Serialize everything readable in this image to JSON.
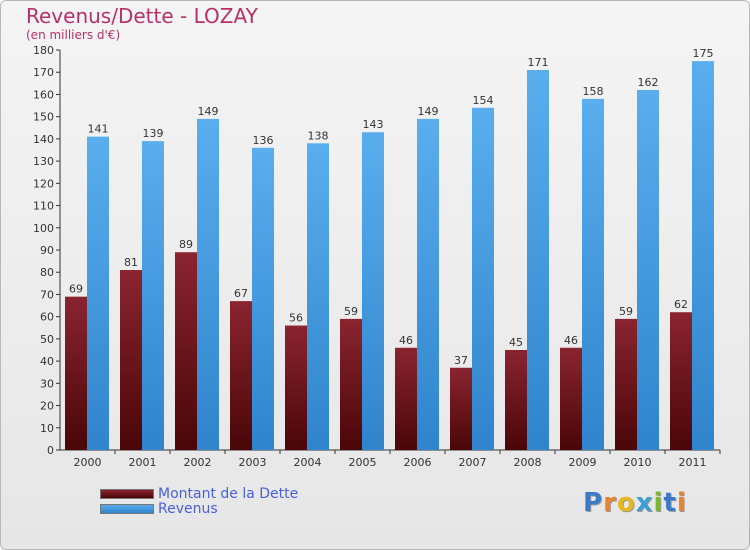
{
  "title": "Revenus/Dette - LOZAY",
  "subtitle": "(en milliers d'€)",
  "brand": "Proxiti",
  "legend": {
    "dette_label": "Montant de la Dette",
    "revenus_label": "Revenus"
  },
  "colors": {
    "dette": "#7a1a22",
    "revenus": "#4aa3e6",
    "title": "#b8306a",
    "legend_text": "#4a5fd8"
  },
  "chart_data": {
    "type": "bar",
    "categories": [
      "2000",
      "2001",
      "2002",
      "2003",
      "2004",
      "2005",
      "2006",
      "2007",
      "2008",
      "2009",
      "2010",
      "2011"
    ],
    "series": [
      {
        "name": "Montant de la Dette",
        "values": [
          69,
          81,
          89,
          67,
          56,
          59,
          46,
          37,
          45,
          46,
          59,
          62
        ]
      },
      {
        "name": "Revenus",
        "values": [
          141,
          139,
          149,
          136,
          138,
          143,
          149,
          154,
          171,
          158,
          162,
          175
        ]
      }
    ],
    "ylim": [
      0,
      180
    ],
    "yticks": [
      0,
      10,
      20,
      30,
      40,
      50,
      60,
      70,
      80,
      90,
      100,
      110,
      120,
      130,
      140,
      150,
      160,
      170,
      180
    ],
    "grid": false,
    "legend_position": "bottom-left"
  }
}
